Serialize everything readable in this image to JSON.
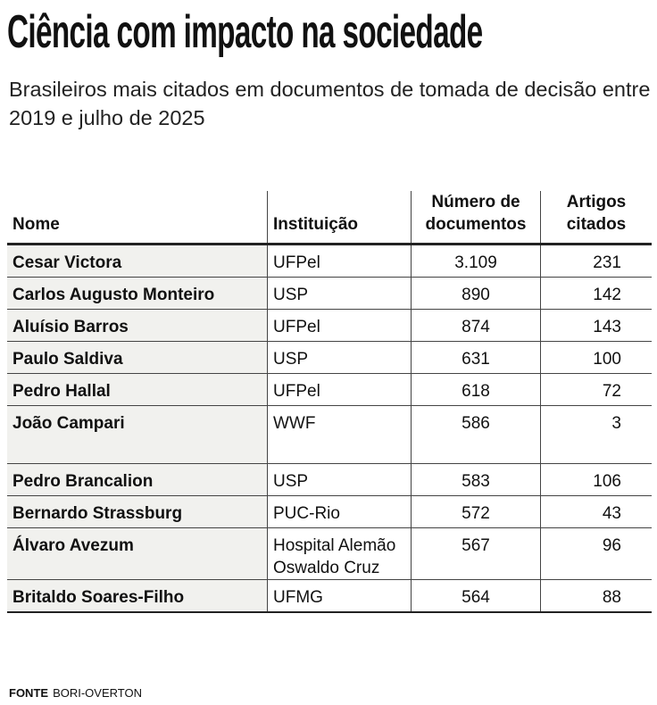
{
  "title": "Ciência com impacto na sociedade",
  "subtitle": "Brasileiros mais citados em documentos de tomada de decisão entre 2019 e julho de 2025",
  "table": {
    "headers": [
      "Nome",
      "Instituição",
      "Número de documentos",
      "Artigos citados"
    ],
    "rows": [
      [
        "Cesar Victora",
        "UFPel",
        "3.109",
        "231"
      ],
      [
        "Carlos Augusto Monteiro",
        "USP",
        "890",
        "142"
      ],
      [
        "Aluísio Barros",
        "UFPel",
        "874",
        "143"
      ],
      [
        "Paulo Saldiva",
        "USP",
        "631",
        "100"
      ],
      [
        "Pedro Hallal",
        "UFPel",
        "618",
        "72"
      ],
      [
        "João Campari",
        "WWF",
        "586",
        "3"
      ],
      [
        "Pedro Brancalion",
        "USP",
        "583",
        "106"
      ],
      [
        "Bernardo Strassburg",
        "PUC-Rio",
        "572",
        "43"
      ],
      [
        "Álvaro Avezum",
        "Hospital Alemão Oswaldo Cruz",
        "567",
        "96"
      ],
      [
        "Britaldo Soares-Filho",
        "UFMG",
        "564",
        "88"
      ]
    ]
  },
  "source": {
    "label": "FONTE",
    "value": "BORI-OVERTON"
  }
}
